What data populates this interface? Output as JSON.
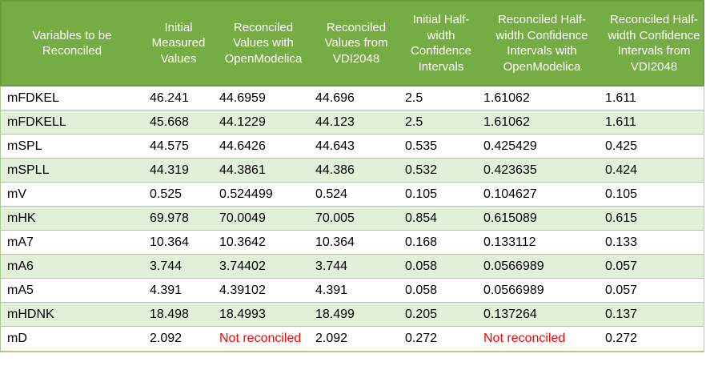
{
  "colors": {
    "header_background": "#75ac44",
    "header_border": "#689d3b",
    "banded_row_background": "#e3f0d9",
    "grid_line": "#a9cf8c",
    "header_text": "#ffffff",
    "body_text": "#000000",
    "not_reconciled_text": "#ff0000"
  },
  "table": {
    "red_text": "Not reconciled",
    "columns": [
      "Variables to be Reconciled",
      "Initial Measured Values",
      "Reconciled Values with OpenModelica",
      "Reconciled Values from VDI2048",
      "Initial Half-width Confidence Intervals",
      "Reconciled Half-width Confidence Intervals with OpenModelica",
      "Reconciled Half-width Confidence Intervals from VDI2048"
    ],
    "rows": [
      [
        "mFDKEL",
        "46.241",
        "44.6959",
        "44.696",
        "2.5",
        "1.61062",
        "1.611"
      ],
      [
        "mFDKELL",
        "45.668",
        "44.1229",
        "44.123",
        "2.5",
        "1.61062",
        "1.611"
      ],
      [
        "mSPL",
        "44.575",
        "44.6426",
        "44.643",
        "0.535",
        "0.425429",
        "0.425"
      ],
      [
        "mSPLL",
        "44.319",
        "44.3861",
        "44.386",
        "0.532",
        "0.423635",
        "0.424"
      ],
      [
        "mV",
        "0.525",
        "0.524499",
        "0.524",
        "0.105",
        "0.104627",
        "0.105"
      ],
      [
        "mHK",
        "69.978",
        "70.0049",
        "70.005",
        "0.854",
        "0.615089",
        "0.615"
      ],
      [
        "mA7",
        "10.364",
        "10.3642",
        "10.364",
        "0.168",
        "0.133112",
        "0.133"
      ],
      [
        "mA6",
        "3.744",
        "3.74402",
        "3.744",
        "0.058",
        "0.0566989",
        "0.057"
      ],
      [
        "mA5",
        "4.391",
        "4.39102",
        "4.391",
        "0.058",
        "0.0566989",
        "0.057"
      ],
      [
        "mHDNK",
        "18.498",
        "18.4993",
        "18.499",
        "0.205",
        "0.137264",
        "0.137"
      ],
      [
        "mD",
        "2.092",
        "Not reconciled",
        "2.092",
        "0.272",
        "Not reconciled",
        "0.272"
      ]
    ]
  }
}
